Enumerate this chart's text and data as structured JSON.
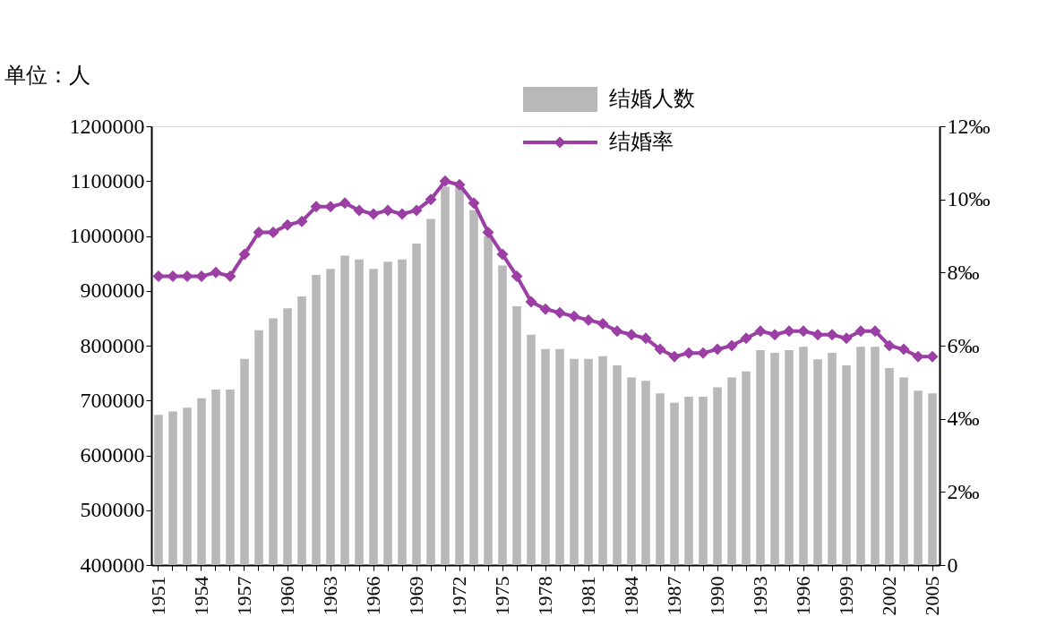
{
  "chart_data": {
    "type": "bar",
    "ylabel": "单位：人",
    "categories": [
      "1951",
      null,
      null,
      "1954",
      null,
      null,
      "1957",
      null,
      null,
      "1960",
      null,
      null,
      "1963",
      null,
      null,
      "1966",
      null,
      null,
      "1969",
      null,
      null,
      "1972",
      null,
      null,
      "1975",
      null,
      null,
      "1978",
      null,
      null,
      "1981",
      null,
      null,
      "1984",
      null,
      null,
      "1987",
      null,
      null,
      "1990",
      null,
      null,
      "1993",
      null,
      null,
      "1996",
      null,
      null,
      "1999",
      null,
      null,
      "2002",
      null,
      null,
      "2005"
    ],
    "series": [
      {
        "name": "结婚人数",
        "type": "bar",
        "color": "#b8b8b8",
        "values": [
          674000,
          680000,
          687000,
          704000,
          720000,
          720000,
          776000,
          828000,
          850000,
          868000,
          890000,
          929000,
          940000,
          964000,
          957000,
          940000,
          953000,
          957000,
          986000,
          1031000,
          1090000,
          1090000,
          1047000,
          1000000,
          946000,
          872000,
          820000,
          794000,
          794000,
          776000,
          776000,
          781000,
          764000,
          742000,
          736000,
          713000,
          696000,
          707000,
          707000,
          724000,
          742000,
          753000,
          792000,
          787000,
          792000,
          798000,
          775000,
          787000,
          764000,
          798000,
          798000,
          759000,
          742000,
          718000,
          713000
        ]
      },
      {
        "name": "结婚率",
        "type": "line",
        "axis": "y2",
        "color": "#9b3fa5",
        "marker": "diamond",
        "values": [
          7.9,
          7.9,
          7.9,
          7.9,
          8.0,
          7.9,
          8.5,
          9.1,
          9.1,
          9.3,
          9.4,
          9.8,
          9.8,
          9.9,
          9.7,
          9.6,
          9.7,
          9.6,
          9.7,
          10.0,
          10.5,
          10.4,
          9.9,
          9.1,
          8.5,
          7.9,
          7.2,
          7.0,
          6.9,
          6.8,
          6.7,
          6.6,
          6.4,
          6.3,
          6.2,
          5.9,
          5.7,
          5.8,
          5.8,
          5.9,
          6.0,
          6.2,
          6.4,
          6.3,
          6.4,
          6.4,
          6.3,
          6.3,
          6.2,
          6.4,
          6.4,
          6.0,
          5.9,
          5.7,
          5.7
        ]
      }
    ],
    "ylim": [
      400000,
      1200000
    ],
    "yticks": [
      400000,
      500000,
      600000,
      700000,
      800000,
      900000,
      1000000,
      1100000,
      1200000
    ],
    "y2lim": [
      0,
      12
    ],
    "y2ticks": [
      0,
      {
        "value": 2,
        "label": "2‰"
      },
      {
        "value": 4,
        "label": "4‰"
      },
      {
        "value": 6,
        "label": "6‰"
      },
      {
        "value": 8,
        "label": "8‰"
      },
      {
        "value": 10,
        "label": "10‰"
      },
      {
        "value": 12,
        "label": "12‰"
      }
    ],
    "legend": "top",
    "grid": false
  }
}
